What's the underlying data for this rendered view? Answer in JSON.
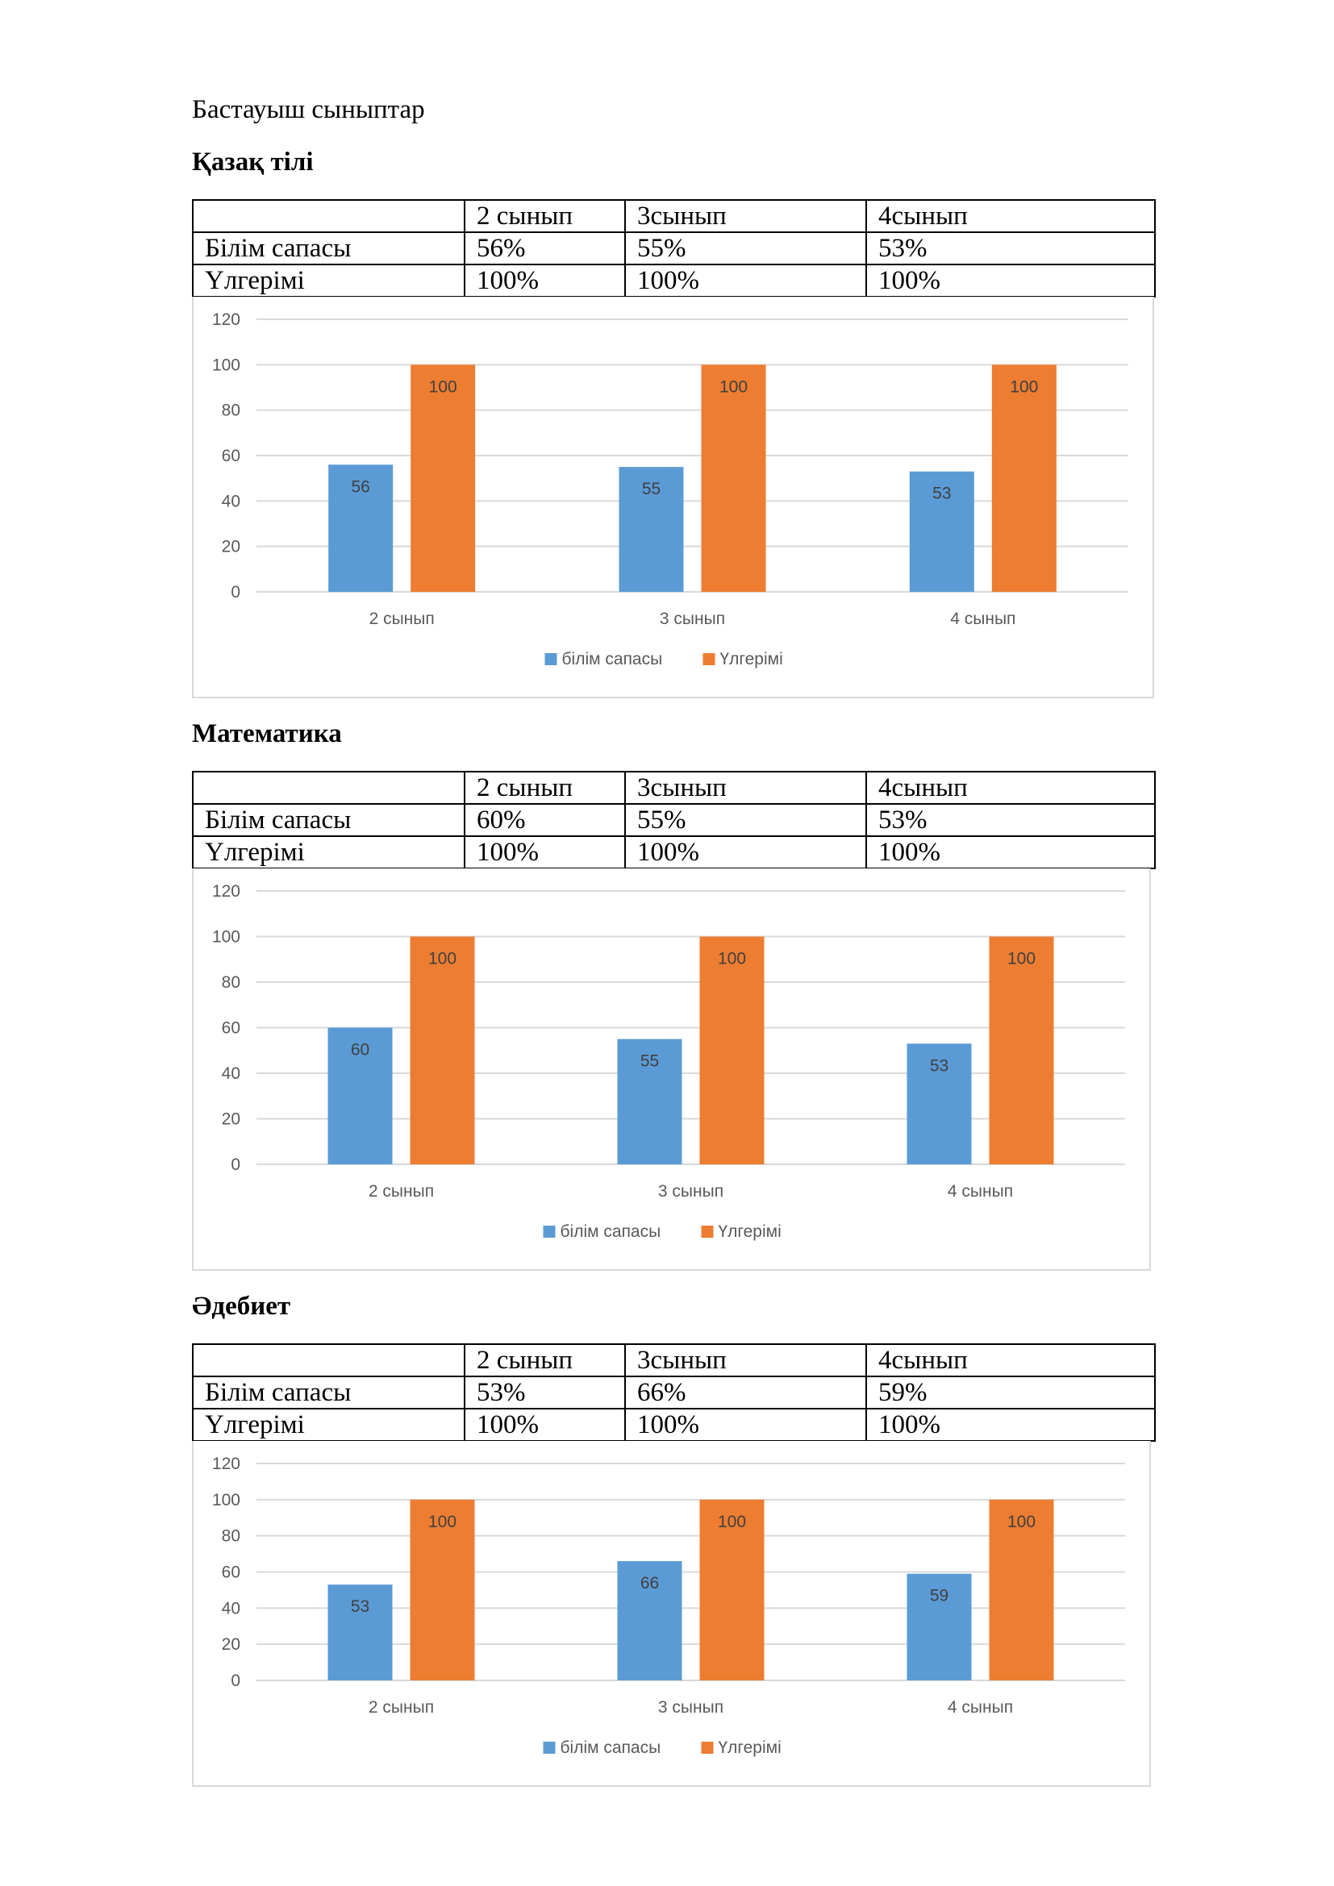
{
  "page": {
    "header": "Бастауыш сыныптар"
  },
  "sections": [
    {
      "title": "Қазақ тілі",
      "table": {
        "header": [
          "",
          "2 сынып",
          "3сынып",
          "4сынып"
        ],
        "rows": [
          [
            "Білім сапасы",
            "56%",
            "55%",
            "53%"
          ],
          [
            "Үлгерімі",
            "100%",
            "100%",
            "100%"
          ]
        ]
      }
    },
    {
      "title": "Математика",
      "table": {
        "header": [
          "",
          "2 сынып",
          "3сынып",
          "4сынып"
        ],
        "rows": [
          [
            "Білім сапасы",
            "60%",
            "55%",
            "53%"
          ],
          [
            "Үлгерімі",
            "100%",
            "100%",
            "100%"
          ]
        ]
      }
    },
    {
      "title": "Әдебиет",
      "table": {
        "header": [
          "",
          "2 сынып",
          "3сынып",
          "4сынып"
        ],
        "rows": [
          [
            "Білім сапасы",
            "53%",
            "66%",
            "59%"
          ],
          [
            "Үлгерімі",
            "100%",
            "100%",
            "100%"
          ]
        ]
      }
    }
  ],
  "chart_data": [
    {
      "type": "bar",
      "title": "",
      "categories": [
        "2 сынып",
        "3 сынып",
        "4 сынып"
      ],
      "series": [
        {
          "name": "білім сапасы",
          "values": [
            56,
            55,
            53
          ],
          "color": "#5B9BD5"
        },
        {
          "name": "Үлгерімі",
          "values": [
            100,
            100,
            100
          ],
          "color": "#ED7D31"
        }
      ],
      "yticks": [
        "0",
        "20",
        "40",
        "60",
        "80",
        "100",
        "120"
      ],
      "ylim": [
        0,
        120
      ],
      "grid": true,
      "legend": "bottom"
    },
    {
      "type": "bar",
      "title": "",
      "categories": [
        "2 сынып",
        "3 сынып",
        "4 сынып"
      ],
      "series": [
        {
          "name": "білім сапасы",
          "values": [
            60,
            55,
            53
          ],
          "color": "#5B9BD5"
        },
        {
          "name": "Үлгерімі",
          "values": [
            100,
            100,
            100
          ],
          "color": "#ED7D31"
        }
      ],
      "yticks": [
        "0",
        "20",
        "40",
        "60",
        "80",
        "100",
        "120"
      ],
      "ylim": [
        0,
        120
      ],
      "grid": true,
      "legend": "bottom"
    },
    {
      "type": "bar",
      "title": "",
      "categories": [
        "2 сынып",
        "3 сынып",
        "4 сынып"
      ],
      "series": [
        {
          "name": "білім сапасы",
          "values": [
            53,
            66,
            59
          ],
          "color": "#5B9BD5"
        },
        {
          "name": "Үлгерімі",
          "values": [
            100,
            100,
            100
          ],
          "color": "#ED7D31"
        }
      ],
      "yticks": [
        "0",
        "20",
        "40",
        "60",
        "80",
        "100",
        "120"
      ],
      "ylim": [
        0,
        120
      ],
      "grid": true,
      "legend": "bottom"
    }
  ]
}
